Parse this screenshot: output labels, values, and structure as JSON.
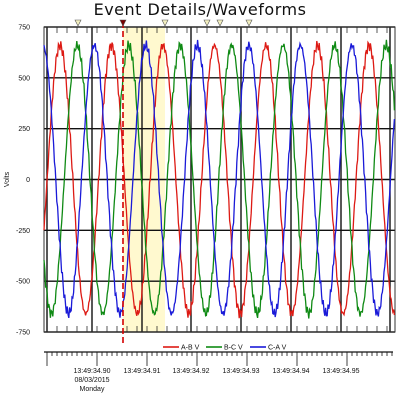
{
  "window": {
    "title": "Event Details/Waveforms"
  },
  "colors": {
    "ab": "#dd1a14",
    "bc": "#0f8a14",
    "ca": "#1a1ad8",
    "cursor": "#d40000",
    "highlight": "#fff9cf",
    "grid": "#111111"
  },
  "legend": {
    "items": [
      "A-B V",
      "B-C V",
      "C-A V"
    ]
  },
  "chart_data": {
    "type": "line",
    "title": "Event Details/Waveforms",
    "ylabel": "Volts",
    "xlabel": "",
    "ylim": [
      -750,
      750
    ],
    "yticks": [
      "750",
      "500",
      "250",
      "0",
      "-250",
      "-500",
      "-750"
    ],
    "xticks": [
      {
        "label": "13:49:34.90",
        "sub": [
          "08/03/2015",
          "Monday"
        ]
      },
      {
        "label": "13:49:34.91"
      },
      {
        "label": "13:49:34.92"
      },
      {
        "label": "13:49:34.93"
      },
      {
        "label": "13:49:34.94"
      },
      {
        "label": "13:49:34.95"
      }
    ],
    "series": [
      {
        "name": "A-B V",
        "amplitude": 660,
        "frequency_hz": 60,
        "phase_deg": 0
      },
      {
        "name": "B-C V",
        "amplitude": 660,
        "frequency_hz": 60,
        "phase_deg": -120
      },
      {
        "name": "C-A V",
        "amplitude": 660,
        "frequency_hz": 60,
        "phase_deg": 120
      }
    ],
    "grid": true,
    "legend_position": "bottom"
  }
}
